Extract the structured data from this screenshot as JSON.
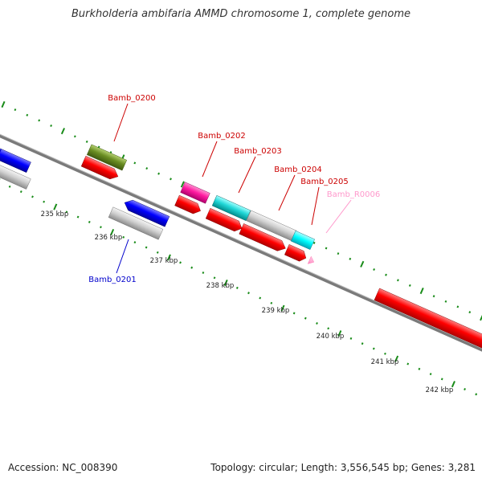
{
  "title": "Burkholderia ambifaria AMMD chromosome 1, complete genome",
  "footer": {
    "accession_label": "Accession:",
    "accession": "NC_008390",
    "topology_label": "Topology:",
    "topology": "circular",
    "length_label": "Length:",
    "length": "3,556,545 bp",
    "genes_label": "Genes:",
    "genes": "3,281"
  },
  "scale": {
    "unit": "kbp",
    "ticks": [
      235,
      236,
      237,
      238,
      239,
      240,
      241,
      242
    ]
  },
  "feature_colors": {
    "forward_cds": "#ff0000",
    "reverse_cds": "#0000ff",
    "cds_other": "#c0c0c0",
    "teal": "#00cccc",
    "magenta": "#ff1aa0",
    "olive": "#6b8e23",
    "rna": "#ff9cc8",
    "outer_ticks": "#1a8c1a",
    "backbone": "#888888"
  },
  "gene_labels": [
    {
      "name": "Bamb_0200",
      "color": "#cc0000"
    },
    {
      "name": "Bamb_0201",
      "color": "#0000cc"
    },
    {
      "name": "Bamb_0202",
      "color": "#cc0000"
    },
    {
      "name": "Bamb_0203",
      "color": "#cc0000"
    },
    {
      "name": "Bamb_0204",
      "color": "#cc0000"
    },
    {
      "name": "Bamb_0205",
      "color": "#cc0000"
    },
    {
      "name": "Bamb_R0006",
      "color": "#ff99cc"
    }
  ]
}
